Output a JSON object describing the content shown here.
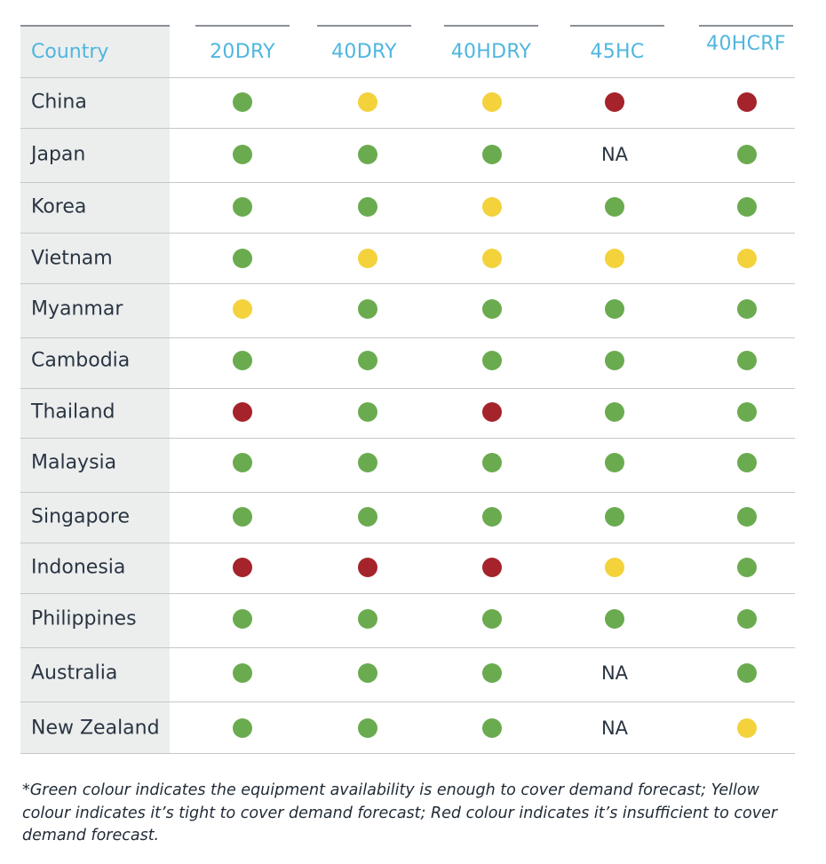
{
  "table": {
    "header": {
      "country": "Country",
      "columns": [
        "20DRY",
        "40DRY",
        "40HDRY",
        "45HC",
        "40HCRF"
      ]
    },
    "status_colors": {
      "green": "#6aab4f",
      "yellow": "#f3d23c",
      "red": "#a5232b"
    },
    "na_label": "NA",
    "rows": [
      {
        "country": "China",
        "cells": [
          "green",
          "yellow",
          "yellow",
          "red",
          "red"
        ]
      },
      {
        "country": "Japan",
        "cells": [
          "green",
          "green",
          "green",
          "NA",
          "green"
        ]
      },
      {
        "country": "Korea",
        "cells": [
          "green",
          "green",
          "yellow",
          "green",
          "green"
        ]
      },
      {
        "country": "Vietnam",
        "cells": [
          "green",
          "yellow",
          "yellow",
          "yellow",
          "yellow"
        ]
      },
      {
        "country": "Myanmar",
        "cells": [
          "yellow",
          "green",
          "green",
          "green",
          "green"
        ]
      },
      {
        "country": "Cambodia",
        "cells": [
          "green",
          "green",
          "green",
          "green",
          "green"
        ]
      },
      {
        "country": "Thailand",
        "cells": [
          "red",
          "green",
          "red",
          "green",
          "green"
        ]
      },
      {
        "country": "Malaysia",
        "cells": [
          "green",
          "green",
          "green",
          "green",
          "green"
        ]
      },
      {
        "country": "Singapore",
        "cells": [
          "green",
          "green",
          "green",
          "green",
          "green"
        ]
      },
      {
        "country": "Indonesia",
        "cells": [
          "red",
          "red",
          "red",
          "yellow",
          "green"
        ]
      },
      {
        "country": "Philippines",
        "cells": [
          "green",
          "green",
          "green",
          "green",
          "green"
        ]
      },
      {
        "country": "Australia",
        "cells": [
          "green",
          "green",
          "green",
          "NA",
          "green"
        ]
      },
      {
        "country": "New Zealand",
        "cells": [
          "green",
          "green",
          "green",
          "NA",
          "yellow"
        ]
      }
    ]
  },
  "footnote": "*Green colour indicates the equipment availability is enough to cover demand forecast; Yellow colour indicates it’s tight to cover demand forecast; Red colour indicates it’s insufficient to cover demand forecast."
}
